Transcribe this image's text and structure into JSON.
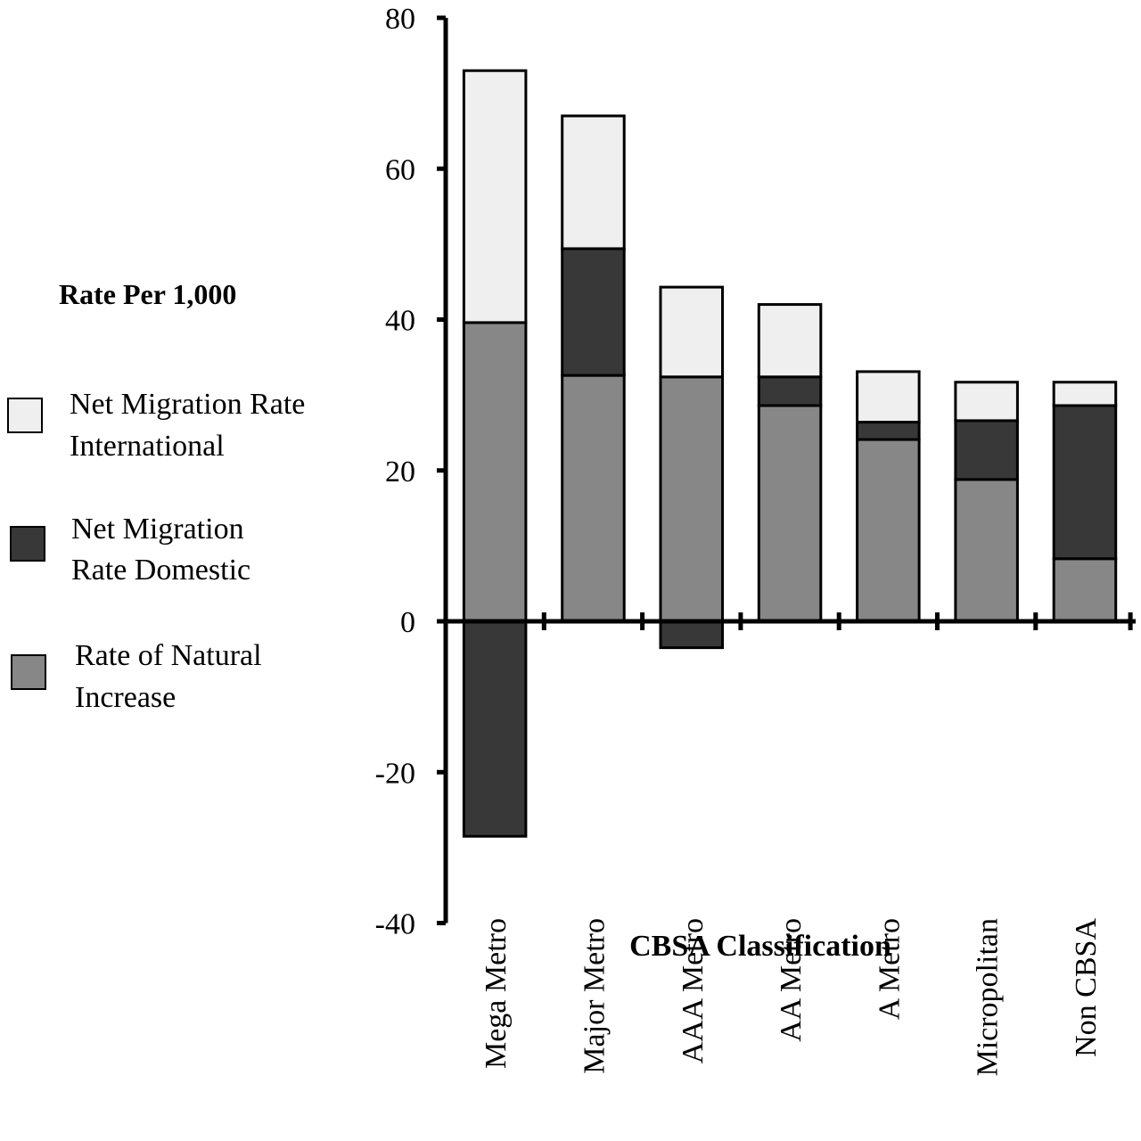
{
  "chart_data": {
    "type": "bar",
    "stacked": true,
    "title": "",
    "xlabel": "CBSA Classification",
    "ylabel": "",
    "ylim": [
      -40,
      80
    ],
    "yticks": [
      80,
      60,
      40,
      20,
      0,
      -20,
      -40
    ],
    "ytick_labels": [
      "80",
      "60",
      "40",
      "20",
      "0",
      "-20",
      "-40"
    ],
    "grid": false,
    "categories": [
      "Mega Metro",
      "Major Metro",
      "AAA Metro",
      "AA Metro",
      "A Metro",
      "Micropolitan",
      "Non CBSA"
    ],
    "series": [
      {
        "name": "Rate of Natural Increase",
        "color": "#878787",
        "values": [
          39.6,
          32.6,
          32.4,
          28.6,
          24.1,
          18.8,
          8.3
        ]
      },
      {
        "name": "Net Migration Rate Domestic",
        "color": "#383838",
        "values": [
          -28.5,
          16.8,
          -3.5,
          3.8,
          2.3,
          7.8,
          20.3
        ]
      },
      {
        "name": "Net Migration Rate International",
        "color": "#efefef",
        "values": [
          33.4,
          17.6,
          11.9,
          9.6,
          6.7,
          5.1,
          3.1
        ]
      }
    ],
    "legend": {
      "title": "Rate Per 1,000",
      "placement": "left",
      "items": [
        {
          "label_line1": "Net Migration Rate",
          "label_line2": "International",
          "color": "#efefef"
        },
        {
          "label_line1": "Net Migration",
          "label_line2": "Rate Domestic",
          "color": "#383838"
        },
        {
          "label_line1": "Rate of Natural",
          "label_line2": "Increase",
          "color": "#878787"
        }
      ]
    }
  }
}
